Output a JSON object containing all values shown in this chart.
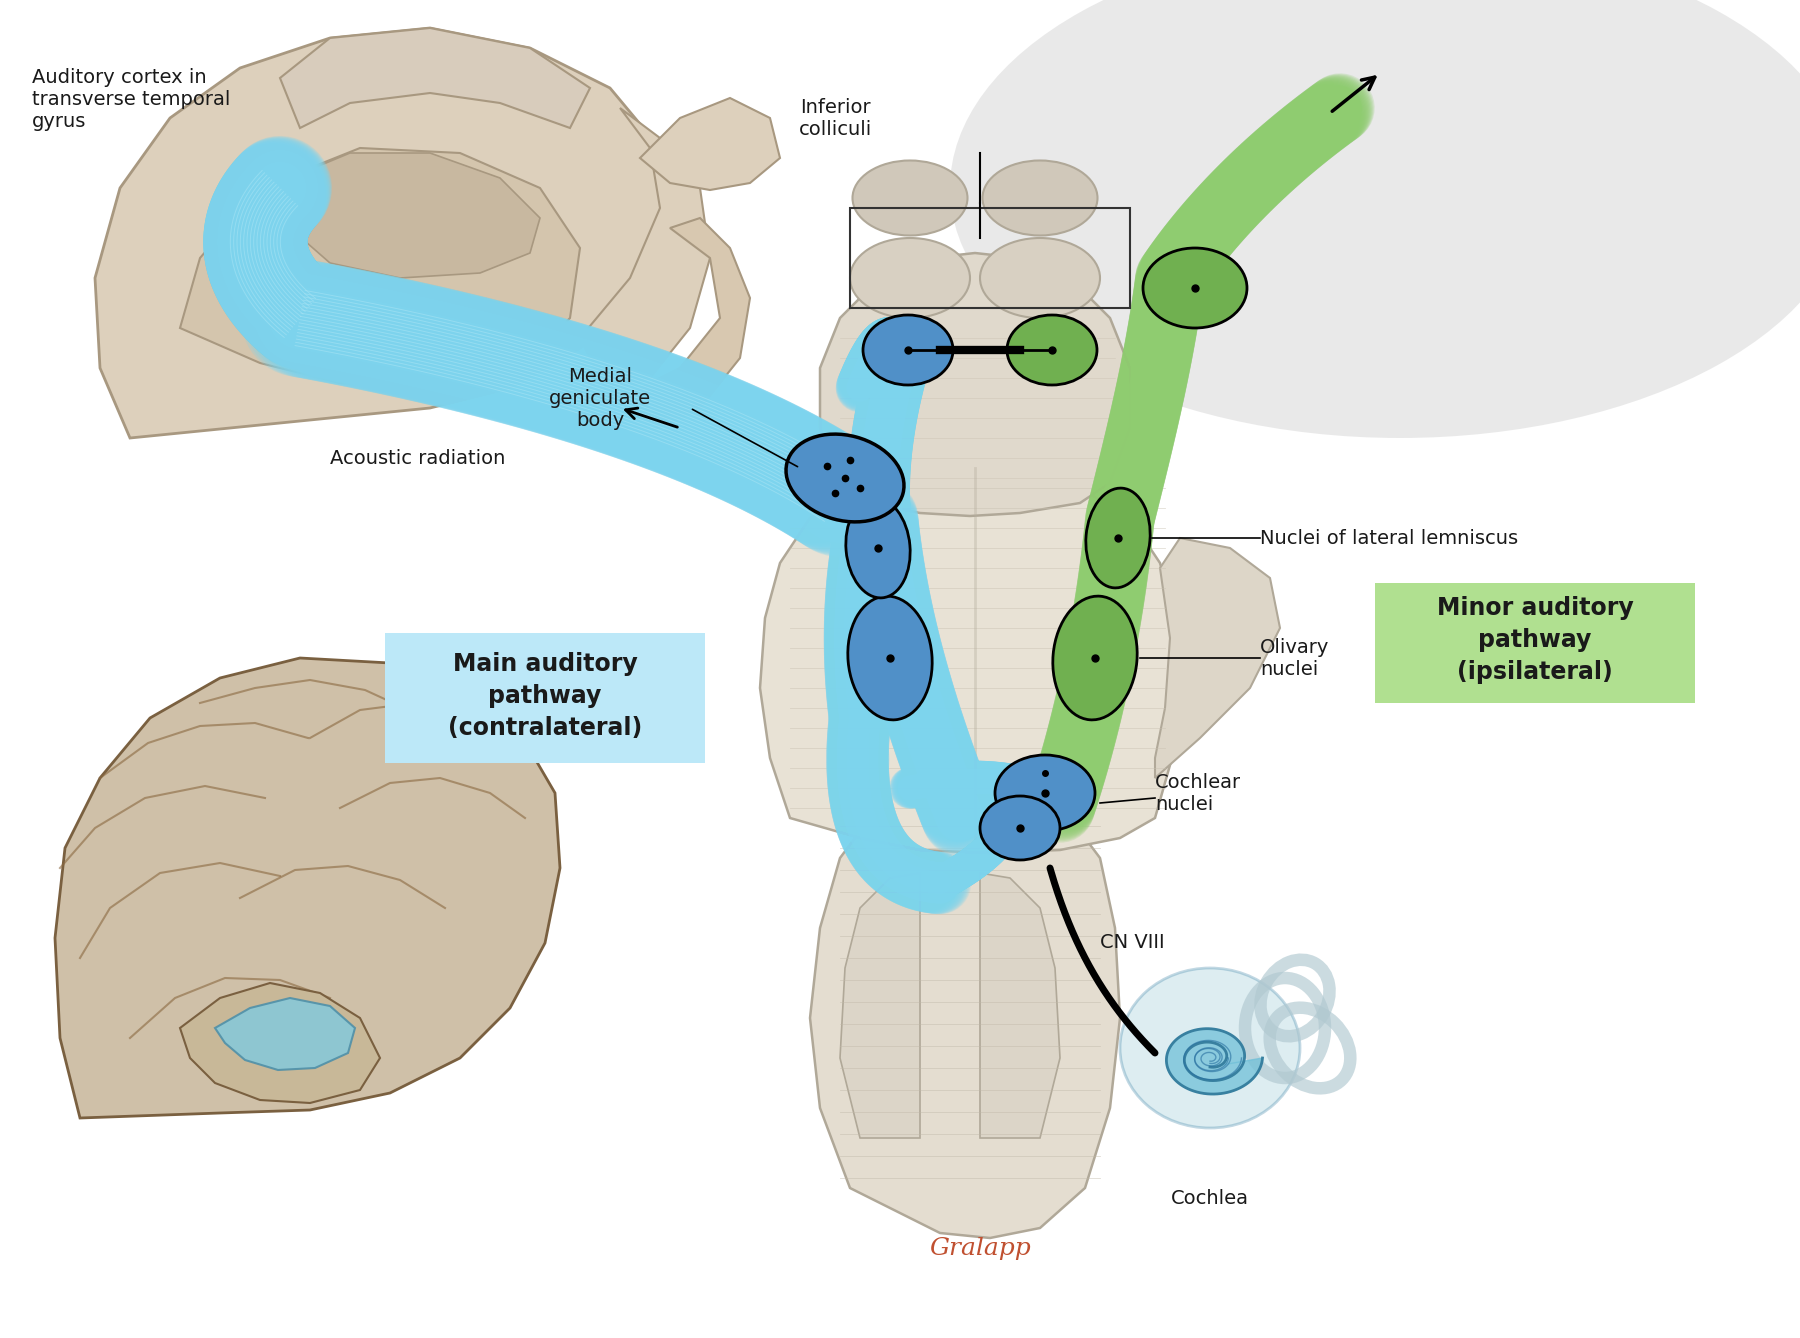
{
  "bg_color": "#ffffff",
  "brainstem_color": "#e8e2d8",
  "brainstem_outline": "#b0a898",
  "gyri_color": "#d8ccbc",
  "gyri_outline": "#a89880",
  "gyri_dark": "#c0b09c",
  "blue_band": "#7dd4ee",
  "blue_band_dark": "#5ab8d8",
  "blue_band_light": "#a8e4f4",
  "green_band": "#8fcc70",
  "green_band_dark": "#6aaa50",
  "blue_nucleus": "#5090c8",
  "green_nucleus": "#70b050",
  "nucleus_outline": "#000000",
  "label_box_blue_bg": "#bce8f8",
  "label_box_green_bg": "#b0e090",
  "text_color": "#1a1a1a",
  "signature_color": "#c05030",
  "gray_cloud": "#d8d8d8",
  "brain_lateral_color": "#cfc0a8",
  "brain_lateral_outline": "#7a6040",
  "auditory_highlight": "#90ccd8",
  "labels": {
    "auditory_cortex": "Auditory cortex in\ntransverse temporal\ngyrus",
    "acoustic_radiation": "Acoustic radiation",
    "medial_geniculate": "Medial\ngeniculate\nbody",
    "inferior_colliculi": "Inferior\ncolliculi",
    "nuclei_lateral": "Nuclei of lateral lemniscus",
    "olivary_nuclei": "Olivary\nnuclei",
    "cochlear_nuclei": "Cochlear\nnuclei",
    "cn_viii": "CN VIII",
    "cochlea": "Cochlea",
    "main_pathway": "Main auditory\npathway\n(contralateral)",
    "minor_pathway": "Minor auditory\npathway\n(ipsilateral)"
  },
  "signature": "Gralapp"
}
